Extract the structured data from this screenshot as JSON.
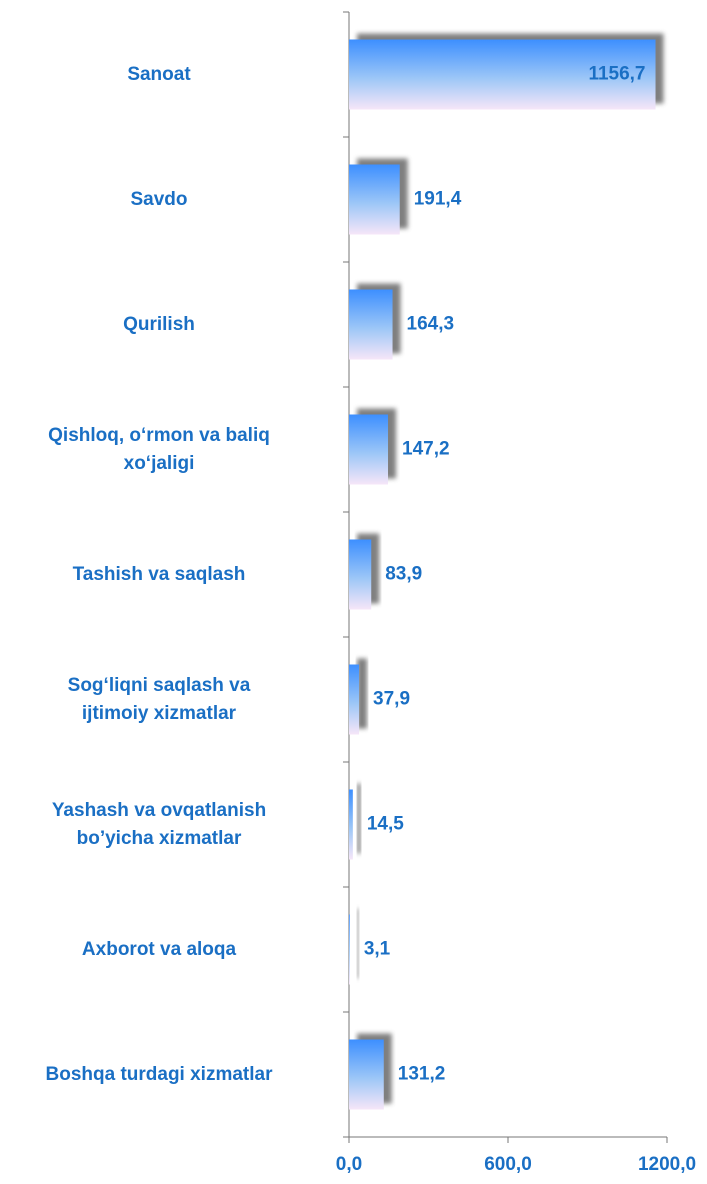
{
  "chart_data": {
    "type": "bar",
    "orientation": "horizontal",
    "categories": [
      "Sanoat",
      "Savdo",
      "Qurilish",
      "Qishloq, o‘rmon va baliq\nxo‘jaligi",
      "Tashish va saqlash",
      "Sog‘liqni saqlash va\nijtimoiy xizmatlar",
      "Yashash va ovqatlanish\nbo’yicha xizmatlar",
      "Axborot va aloqa",
      "Boshqa turdagi xizmatlar"
    ],
    "values": [
      1156.7,
      191.4,
      164.3,
      147.2,
      83.9,
      37.9,
      14.5,
      3.1,
      131.2
    ],
    "value_labels": [
      "1156,7",
      "191,4",
      "164,3",
      "147,2",
      "83,9",
      "37,9",
      "14,5",
      "3,1",
      "131,2"
    ],
    "color": "#4a9bff",
    "xlim": [
      0,
      1200
    ],
    "xticks": [
      {
        "value": 0,
        "label": "0,0"
      },
      {
        "value": 600,
        "label": "600,0"
      },
      {
        "value": 1200,
        "label": "1200,0"
      }
    ]
  }
}
